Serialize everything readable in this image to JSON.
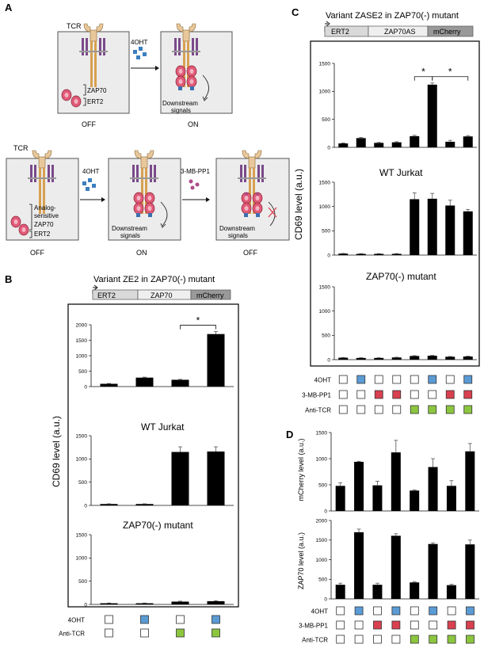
{
  "panel_letters": {
    "a": "A",
    "b": "B",
    "c": "C",
    "d": "D"
  },
  "panel_a": {
    "tcr_label": "TCR",
    "drug_4oht": "4OHT",
    "drug_3mbpp1": "3-MB-PP1",
    "zap70": "ZAP70",
    "ert2": "ERT2",
    "analog_line1": "Analog-",
    "analog_line2": "sensitive",
    "downstream_line1": "Downstream",
    "downstream_line2": "signals",
    "state_off": "OFF",
    "state_on": "ON"
  },
  "panel_b": {
    "title": "Variant ZE2 in ZAP70(-) mutant",
    "construct": [
      "ERT2",
      "ZAP70",
      "mCherry"
    ],
    "ylabel": "CD69 level (a.u.)",
    "rows": [
      {
        "label": "4OHT",
        "boxes": [
          "white",
          "blue",
          "white",
          "blue"
        ]
      },
      {
        "label": "Anti-TCR",
        "boxes": [
          "white",
          "white",
          "green",
          "green"
        ]
      }
    ]
  },
  "panel_c": {
    "title": "Variant ZASE2 in ZAP70(-) mutant",
    "construct": [
      "ERT2",
      "ZAP70AS",
      "mCherry"
    ],
    "ylabel": "CD69 level (a.u.)",
    "rows": [
      {
        "label": "4OHT",
        "boxes": [
          "white",
          "blue",
          "white",
          "white",
          "white",
          "blue",
          "white",
          "blue"
        ]
      },
      {
        "label": "3-MB-PP1",
        "boxes": [
          "white",
          "white",
          "red",
          "red",
          "white",
          "white",
          "red",
          "red"
        ]
      },
      {
        "label": "Anti-TCR",
        "boxes": [
          "white",
          "white",
          "white",
          "white",
          "green",
          "green",
          "green",
          "green"
        ]
      }
    ]
  },
  "panel_d": {
    "rows": [
      {
        "label": "4OHT",
        "boxes": [
          "white",
          "blue",
          "white",
          "blue",
          "white",
          "blue",
          "white",
          "blue"
        ]
      },
      {
        "label": "3-MB-PP1",
        "boxes": [
          "white",
          "white",
          "red",
          "red",
          "white",
          "white",
          "red",
          "red"
        ]
      },
      {
        "label": "Anti-TCR",
        "boxes": [
          "white",
          "white",
          "white",
          "white",
          "green",
          "green",
          "green",
          "green"
        ]
      }
    ]
  },
  "colors": {
    "blue": "#5b9bd5",
    "red": "#d9404f",
    "green": "#8cc63f",
    "bar": "#000000",
    "receptor": "#7a4a8a",
    "kinase": "#e05a77"
  },
  "chart_data": [
    {
      "id": "B-ze2",
      "type": "bar",
      "categories": [
        "1",
        "2",
        "3",
        "4"
      ],
      "values": [
        90,
        290,
        220,
        1700
      ],
      "errors": [
        10,
        15,
        15,
        80
      ],
      "ylim": [
        0,
        2000
      ],
      "yticks": [
        0,
        500,
        1000,
        1500,
        2000
      ],
      "significance": [
        {
          "from": 2,
          "to": 3,
          "label": "*"
        }
      ]
    },
    {
      "id": "B-wt",
      "type": "bar",
      "title": "WT Jurkat",
      "categories": [
        "1",
        "2",
        "3",
        "4"
      ],
      "values": [
        30,
        30,
        1150,
        1160
      ],
      "errors": [
        5,
        5,
        110,
        100
      ],
      "ylim": [
        0,
        1500
      ],
      "yticks": [
        0,
        500,
        1000,
        1500
      ]
    },
    {
      "id": "B-zap",
      "type": "bar",
      "title": "ZAP70(-) mutant",
      "categories": [
        "1",
        "2",
        "3",
        "4"
      ],
      "values": [
        25,
        25,
        60,
        70
      ],
      "errors": [
        5,
        5,
        10,
        10
      ],
      "ylim": [
        0,
        1500
      ],
      "yticks": [
        0,
        500,
        1000,
        1500
      ]
    },
    {
      "id": "C-zase2",
      "type": "bar",
      "categories": [
        "1",
        "2",
        "3",
        "4",
        "5",
        "6",
        "7",
        "8"
      ],
      "values": [
        70,
        165,
        80,
        90,
        200,
        1120,
        100,
        195
      ],
      "errors": [
        8,
        12,
        8,
        10,
        15,
        30,
        25,
        15
      ],
      "ylim": [
        0,
        1500
      ],
      "yticks": [
        0,
        500,
        1000,
        1500
      ],
      "significance": [
        {
          "from": 4,
          "to": 5,
          "label": "*"
        },
        {
          "from": 5,
          "to": 7,
          "label": "*"
        }
      ]
    },
    {
      "id": "C-wt",
      "type": "bar",
      "title": "WT Jurkat",
      "categories": [
        "1",
        "2",
        "3",
        "4",
        "5",
        "6",
        "7",
        "8"
      ],
      "values": [
        30,
        25,
        25,
        25,
        1150,
        1160,
        1020,
        900
      ],
      "errors": [
        5,
        5,
        5,
        5,
        130,
        110,
        110,
        40
      ],
      "ylim": [
        0,
        1500
      ],
      "yticks": [
        0,
        500,
        1000,
        1500
      ]
    },
    {
      "id": "C-zap",
      "type": "bar",
      "title": "ZAP70(-) mutant",
      "categories": [
        "1",
        "2",
        "3",
        "4",
        "5",
        "6",
        "7",
        "8"
      ],
      "values": [
        40,
        35,
        35,
        45,
        75,
        80,
        60,
        65
      ],
      "errors": [
        5,
        5,
        5,
        5,
        8,
        8,
        6,
        6
      ],
      "ylim": [
        0,
        1500
      ],
      "yticks": [
        0,
        500,
        1000,
        1500
      ]
    },
    {
      "id": "D-mcherry",
      "type": "bar",
      "ylabel": "mCherry level (a.u.)",
      "categories": [
        "1",
        "2",
        "3",
        "4",
        "5",
        "6",
        "7",
        "8"
      ],
      "values": [
        480,
        940,
        490,
        1120,
        390,
        840,
        480,
        1140
      ],
      "errors": [
        60,
        10,
        80,
        230,
        10,
        160,
        100,
        150
      ],
      "ylim": [
        0,
        1500
      ],
      "yticks": [
        0,
        500,
        1000,
        1500
      ]
    },
    {
      "id": "D-zap70",
      "type": "bar",
      "ylabel": "ZAP70 level (a.u.)",
      "categories": [
        "1",
        "2",
        "3",
        "4",
        "5",
        "6",
        "7",
        "8"
      ],
      "values": [
        360,
        1700,
        360,
        1610,
        420,
        1400,
        350,
        1390
      ],
      "errors": [
        40,
        80,
        40,
        50,
        20,
        30,
        20,
        110
      ],
      "ylim": [
        0,
        2000
      ],
      "yticks": [
        0,
        500,
        1000,
        1500,
        2000
      ]
    }
  ]
}
